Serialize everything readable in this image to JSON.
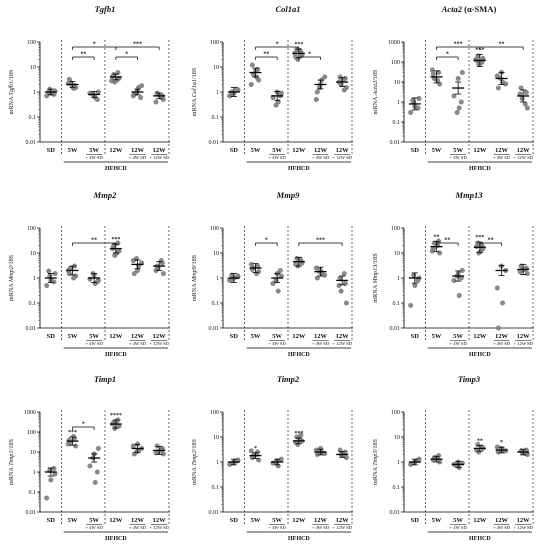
{
  "chart_data": [
    {
      "type": "scatter",
      "title": "Tgfb1",
      "ylabel_parts": [
        "mRNA ",
        "Tgfb1",
        "/18S"
      ],
      "log": true,
      "ylim": [
        0.01,
        100
      ],
      "yticks": [
        "0.01",
        "0.1",
        "1",
        "10",
        "100"
      ],
      "categories": [
        "SD",
        "5W",
        "5W",
        "12W",
        "12W",
        "12W"
      ],
      "notes": [
        "",
        "",
        "+ 4W SD",
        "",
        "+ 4W SD",
        "+ 12W SD"
      ],
      "group_label": "HFHCD",
      "means": [
        1.0,
        2.0,
        0.8,
        4.0,
        1.0,
        0.7
      ],
      "sem_factor": 1.3,
      "points": [
        [
          0.7,
          0.9,
          1.1,
          1.3,
          0.8,
          1.0
        ],
        [
          1.5,
          2.5,
          1.8,
          3.2,
          1.4,
          2.2,
          1.7
        ],
        [
          0.6,
          0.9,
          0.7,
          1.0,
          0.8,
          0.5
        ],
        [
          2.5,
          3.5,
          5.0,
          6.0,
          4.2,
          3.0,
          2.8
        ],
        [
          0.8,
          1.5,
          0.7,
          1.2,
          1.8,
          0.9,
          0.6
        ],
        [
          0.5,
          0.8,
          0.7,
          0.9,
          0.6,
          0.4
        ]
      ],
      "stars": [
        "",
        "",
        "",
        "",
        "",
        ""
      ],
      "brackets": [
        {
          "from": 1,
          "to": 3,
          "level": 1,
          "label": "*"
        },
        {
          "from": 1,
          "to": 2,
          "level": 0,
          "label": "**"
        },
        {
          "from": 3,
          "to": 4,
          "level": 0,
          "label": "*"
        },
        {
          "from": 3,
          "to": 5,
          "level": 1,
          "label": "***"
        }
      ]
    },
    {
      "type": "scatter",
      "title": "Col1a1",
      "ylabel_parts": [
        "mRNA ",
        "Col1a1",
        "/18S"
      ],
      "log": true,
      "ylim": [
        0.01,
        100
      ],
      "yticks": [
        "0.01",
        "0.1",
        "1",
        "10",
        "100"
      ],
      "categories": [
        "SD",
        "5W",
        "5W",
        "12W",
        "12W",
        "12W"
      ],
      "notes": [
        "",
        "",
        "+ 4W SD",
        "",
        "+ 4W SD",
        "+ 12W SD"
      ],
      "group_label": "HFHCD",
      "means": [
        1.0,
        6.0,
        0.7,
        35,
        2.0,
        2.5
      ],
      "sem_factor": 1.5,
      "points": [
        [
          0.7,
          0.9,
          1.2,
          0.8,
          1.3,
          1.0
        ],
        [
          3.0,
          5.0,
          8.0,
          12,
          4.0,
          2.0,
          7.0
        ],
        [
          0.4,
          0.6,
          1.0,
          0.9,
          0.3,
          0.7
        ],
        [
          20,
          30,
          50,
          40,
          25,
          45,
          35
        ],
        [
          1.0,
          3.0,
          0.5,
          2.0,
          4.0,
          1.5
        ],
        [
          1.5,
          2.0,
          3.5,
          4.0,
          1.2,
          2.5,
          3.0
        ]
      ],
      "stars": [
        "",
        "",
        "",
        "***",
        "",
        ""
      ],
      "brackets": [
        {
          "from": 1,
          "to": 2,
          "level": 0,
          "label": "**"
        },
        {
          "from": 1,
          "to": 3,
          "level": 1,
          "label": "*"
        },
        {
          "from": 3,
          "to": 4,
          "level": 0,
          "label": "*"
        }
      ]
    },
    {
      "type": "scatter",
      "title_parts": [
        "Acta2",
        " (α-SMA)"
      ],
      "ylabel_parts": [
        "mRNA ",
        "Acta2",
        "/18S"
      ],
      "log": true,
      "ylim": [
        0.01,
        1000
      ],
      "yticks": [
        "0.01",
        "0.1",
        "1",
        "10",
        "100",
        "1000"
      ],
      "categories": [
        "SD",
        "5W",
        "5W",
        "12W",
        "12W",
        "12W"
      ],
      "notes": [
        "",
        "",
        "+ 4W SD",
        "",
        "+ 4W SD",
        "+ 12W SD"
      ],
      "group_label": "HFHCD",
      "means": [
        0.8,
        18,
        5,
        120,
        15,
        2.0
      ],
      "sem_factor": 2.0,
      "points": [
        [
          0.3,
          0.6,
          1.5,
          1.0,
          0.5,
          1.2
        ],
        [
          8,
          15,
          30,
          25,
          12,
          40
        ],
        [
          0.5,
          2.0,
          15,
          30,
          0.3,
          1.0
        ],
        [
          80,
          150,
          200,
          100,
          120,
          90,
          130
        ],
        [
          5,
          10,
          20,
          30,
          8,
          15
        ],
        [
          0.5,
          1.5,
          3.0,
          5.0,
          0.8,
          2.5
        ]
      ],
      "stars": [
        "",
        "",
        "",
        "***",
        "",
        ""
      ],
      "brackets": [
        {
          "from": 1,
          "to": 2,
          "level": 0,
          "label": "*"
        },
        {
          "from": 1,
          "to": 3,
          "level": 1,
          "label": "***"
        },
        {
          "from": 3,
          "to": 5,
          "level": 1,
          "label": "**"
        }
      ]
    },
    {
      "type": "scatter",
      "title": "Mmp2",
      "ylabel_parts": [
        "mRNA ",
        "Mmp2",
        "/18S"
      ],
      "log": true,
      "ylim": [
        0.01,
        100
      ],
      "yticks": [
        "0.01",
        "0.1",
        "1",
        "10",
        "100"
      ],
      "categories": [
        "SD",
        "5W",
        "5W",
        "12W",
        "12W",
        "12W"
      ],
      "notes": [
        "",
        "",
        "+ 4W SD",
        "",
        "+ 4W SD",
        "+ 12W SD"
      ],
      "group_label": "HFHCD",
      "means": [
        1.0,
        2.0,
        1.0,
        15,
        3.5,
        3.0
      ],
      "sem_factor": 1.5,
      "points": [
        [
          0.5,
          0.8,
          1.5,
          1.2,
          0.7,
          1.9
        ],
        [
          1.2,
          2.5,
          3.0,
          1.5,
          1.0,
          2.0
        ],
        [
          0.6,
          0.9,
          1.3,
          0.8,
          1.5,
          0.7
        ],
        [
          8,
          12,
          20,
          25,
          15,
          10
        ],
        [
          1.5,
          3.0,
          5.0,
          2.0,
          4.0,
          6.0
        ],
        [
          1.5,
          2.5,
          4.0,
          3.0,
          5.0,
          2.0
        ]
      ],
      "stars": [
        "",
        "",
        "",
        "***",
        "",
        ""
      ],
      "brackets": [
        {
          "from": 1,
          "to": 3,
          "level": 0,
          "label": "**"
        }
      ]
    },
    {
      "type": "scatter",
      "title": "Mmp9",
      "ylabel_parts": [
        "mRNA ",
        "Mmp9",
        "/18S"
      ],
      "log": true,
      "ylim": [
        0.01,
        100
      ],
      "yticks": [
        "0.01",
        "0.1",
        "1",
        "10",
        "100"
      ],
      "categories": [
        "SD",
        "5W",
        "5W",
        "12W",
        "12W",
        "12W"
      ],
      "notes": [
        "",
        "",
        "+ 4W SD",
        "",
        "+ 4W SD",
        "+ 12W SD"
      ],
      "group_label": "HFHCD",
      "means": [
        1.0,
        2.5,
        1.0,
        4.5,
        1.8,
        0.8
      ],
      "sem_factor": 1.5,
      "points": [
        [
          0.8,
          1.0,
          1.2,
          0.9,
          1.1,
          1.3
        ],
        [
          1.8,
          2.5,
          3.0,
          2.2,
          1.5,
          3.5
        ],
        [
          0.3,
          0.6,
          1.5,
          1.2,
          0.8,
          2.0
        ],
        [
          3.0,
          4.0,
          6.0,
          5.0,
          3.5,
          5.5
        ],
        [
          1.0,
          1.5,
          2.5,
          2.0,
          1.3,
          1.8
        ],
        [
          0.1,
          0.3,
          0.6,
          1.0,
          1.5,
          0.5
        ]
      ],
      "stars": [
        "",
        "",
        "",
        "",
        "",
        ""
      ],
      "brackets": [
        {
          "from": 1,
          "to": 2,
          "level": 0,
          "label": "*"
        },
        {
          "from": 3,
          "to": 5,
          "level": 0,
          "label": "***"
        }
      ]
    },
    {
      "type": "scatter",
      "title": "Mmp13",
      "ylabel_parts": [
        "mRNA ",
        "Mmp13",
        "/18S"
      ],
      "log": true,
      "ylim": [
        0.01,
        100
      ],
      "yticks": [
        "0.01",
        "0.1",
        "1",
        "10",
        "100"
      ],
      "categories": [
        "SD",
        "5W",
        "5W",
        "12W",
        "12W",
        "12W"
      ],
      "notes": [
        "",
        "",
        "+ 4W SD",
        "",
        "+ 4W SD",
        "+ 12W SD"
      ],
      "group_label": "HFHCD",
      "means": [
        1.0,
        18,
        1.2,
        17,
        2.0,
        2.2
      ],
      "sem_factor": 1.6,
      "points": [
        [
          0.08,
          0.5,
          1.0,
          1.3,
          0.8
        ],
        [
          10,
          25,
          30,
          15,
          20,
          12
        ],
        [
          0.2,
          0.8,
          1.5,
          2.0,
          1.2,
          1.0
        ],
        [
          10,
          15,
          25,
          20,
          18,
          12
        ],
        [
          0.01,
          0.1,
          0.4,
          3.0,
          2.0
        ],
        [
          1.5,
          2.0,
          2.5,
          3.0,
          2.2,
          1.8
        ]
      ],
      "stars": [
        "",
        "**",
        "",
        "***",
        "",
        ""
      ],
      "brackets": [
        {
          "from": 1,
          "to": 2,
          "level": 0,
          "label": "**"
        },
        {
          "from": 3,
          "to": 4,
          "level": 0,
          "label": "**"
        }
      ]
    },
    {
      "type": "scatter",
      "title": "Timp1",
      "ylabel_parts": [
        "mRNA ",
        "Timp1",
        "/18S"
      ],
      "log": true,
      "ylim": [
        0.01,
        1000
      ],
      "yticks": [
        "0.01",
        "0.1",
        "1",
        "10",
        "100",
        "1000"
      ],
      "categories": [
        "SD",
        "5W",
        "5W",
        "12W",
        "12W",
        "12W"
      ],
      "notes": [
        "",
        "",
        "+ 4W SD",
        "",
        "+ 4W SD",
        "+ 12W SD"
      ],
      "group_label": "HFHCD",
      "means": [
        1.0,
        35,
        5.0,
        250,
        15,
        12
      ],
      "sem_factor": 1.6,
      "points": [
        [
          0.05,
          0.4,
          0.8,
          1.2,
          1.5
        ],
        [
          20,
          30,
          50,
          40,
          60,
          25
        ],
        [
          0.3,
          2.0,
          8.0,
          15,
          5.0,
          1.0
        ],
        [
          150,
          200,
          300,
          400,
          250,
          350
        ],
        [
          8,
          12,
          20,
          25,
          15,
          10
        ],
        [
          8,
          10,
          15,
          20,
          12,
          9
        ]
      ],
      "stars": [
        "",
        "***",
        "",
        "****",
        "",
        ""
      ],
      "brackets": [
        {
          "from": 1,
          "to": 2,
          "level": 0,
          "label": "*"
        }
      ]
    },
    {
      "type": "scatter",
      "title": "Timp2",
      "ylabel_parts": [
        "mRNA ",
        "Timp2",
        "/18S"
      ],
      "log": true,
      "ylim": [
        0.01,
        100
      ],
      "yticks": [
        "0.01",
        "0.1",
        "1",
        "10",
        "100"
      ],
      "categories": [
        "SD",
        "5W",
        "5W",
        "12W",
        "12W",
        "12W"
      ],
      "notes": [
        "",
        "",
        "+ 4W SD",
        "",
        "+ 4W SD",
        "+ 12W SD"
      ],
      "group_label": "HFHCD",
      "means": [
        1.0,
        1.8,
        1.0,
        7.0,
        2.5,
        2.0
      ],
      "sem_factor": 1.3,
      "points": [
        [
          0.8,
          1.0,
          1.2,
          0.9,
          1.1
        ],
        [
          1.2,
          1.8,
          2.5,
          1.5,
          2.0,
          2.8
        ],
        [
          0.7,
          0.9,
          1.1,
          1.3,
          1.0
        ],
        [
          5,
          7,
          10,
          12,
          6,
          8
        ],
        [
          2.0,
          2.5,
          3.0,
          3.5,
          2.2,
          2.8
        ],
        [
          1.5,
          2.0,
          2.5,
          3.0,
          1.8
        ]
      ],
      "stars": [
        "",
        "*",
        "",
        "***",
        "",
        ""
      ],
      "brackets": []
    },
    {
      "type": "scatter",
      "title": "Timp3",
      "ylabel_parts": [
        "mRNA ",
        "Timp3",
        "/18S"
      ],
      "log": true,
      "ylim": [
        0.01,
        100
      ],
      "yticks": [
        "0.01",
        "0.1",
        "1",
        "10",
        "100"
      ],
      "categories": [
        "SD",
        "5W",
        "5W",
        "12W",
        "12W",
        "12W"
      ],
      "notes": [
        "",
        "",
        "+ 4W SD",
        "",
        "+ 4W SD",
        "+ 12W SD"
      ],
      "group_label": "HFHCD",
      "means": [
        1.0,
        1.3,
        0.8,
        3.5,
        3.0,
        2.5
      ],
      "sem_factor": 1.3,
      "points": [
        [
          0.8,
          1.0,
          1.3,
          0.9,
          1.2
        ],
        [
          1.0,
          1.5,
          1.8,
          1.2,
          1.4
        ],
        [
          0.6,
          0.8,
          1.0,
          0.9,
          0.7
        ],
        [
          2.5,
          3.5,
          5.0,
          4.0,
          3.0
        ],
        [
          2.5,
          3.0,
          4.0,
          3.5,
          2.8
        ],
        [
          2.0,
          2.5,
          3.0,
          2.8,
          2.2
        ]
      ],
      "stars": [
        "",
        "",
        "",
        "**",
        "*",
        ""
      ],
      "brackets": []
    }
  ]
}
